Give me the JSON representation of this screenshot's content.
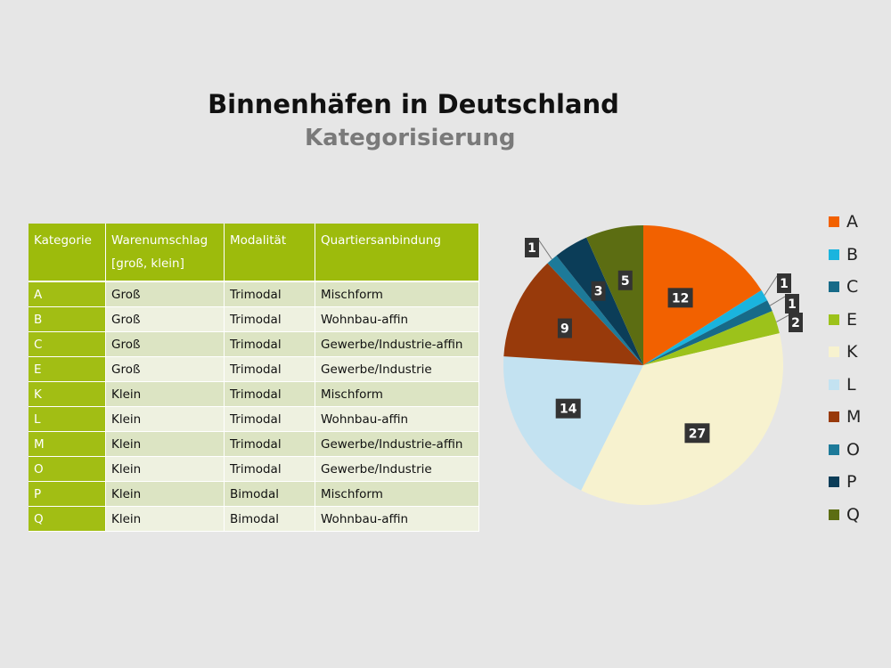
{
  "title": "Binnenhäfen in Deutschland",
  "subtitle": "Kategorisierung",
  "table": {
    "headers": [
      "Kategorie",
      "Warenumschlag [groß, klein]",
      "Modalität",
      "Quartiersanbindung"
    ],
    "rows": [
      [
        "A",
        "Groß",
        "Trimodal",
        "Mischform"
      ],
      [
        "B",
        "Groß",
        "Trimodal",
        "Wohnbau-affin"
      ],
      [
        "C",
        "Groß",
        "Trimodal",
        "Gewerbe/Industrie-affin"
      ],
      [
        "E",
        "Groß",
        "Trimodal",
        "Gewerbe/Industrie"
      ],
      [
        "K",
        "Klein",
        "Trimodal",
        "Mischform"
      ],
      [
        "L",
        "Klein",
        "Trimodal",
        "Wohnbau-affin"
      ],
      [
        "M",
        "Klein",
        "Trimodal",
        "Gewerbe/Industrie-affin"
      ],
      [
        "O",
        "Klein",
        "Trimodal",
        "Gewerbe/Industrie"
      ],
      [
        "P",
        "Klein",
        "Bimodal",
        "Mischform"
      ],
      [
        "Q",
        "Klein",
        "Bimodal",
        "Wohnbau-affin"
      ]
    ]
  },
  "chart_data": {
    "type": "pie",
    "categories": [
      "A",
      "B",
      "C",
      "E",
      "K",
      "L",
      "M",
      "O",
      "P",
      "Q"
    ],
    "values": [
      12,
      1,
      1,
      2,
      27,
      14,
      9,
      1,
      3,
      5
    ],
    "colors": [
      "#f26100",
      "#1ab4de",
      "#176a88",
      "#9cc21b",
      "#f7f2cf",
      "#c3e2f1",
      "#983a0b",
      "#1d7a99",
      "#0b3d58",
      "#5c6d12"
    ],
    "legend": "right",
    "start": "top, clockwise"
  }
}
